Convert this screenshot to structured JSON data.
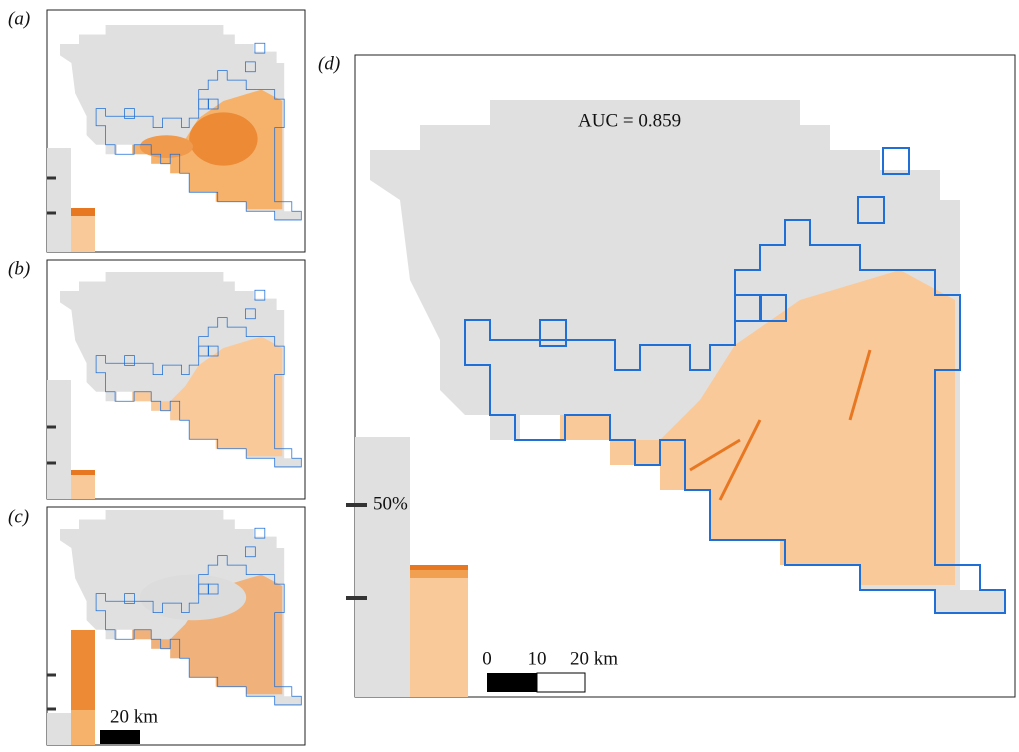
{
  "panels": [
    {
      "label": "(a)"
    },
    {
      "label": "(b)"
    },
    {
      "label": "(c)",
      "scale_bar": "20 km"
    },
    {
      "label": "(d)",
      "annotation": "AUC = 0.859",
      "legend_tick": "50%",
      "scale_labels": [
        "0",
        "10",
        "20 km"
      ]
    }
  ]
}
